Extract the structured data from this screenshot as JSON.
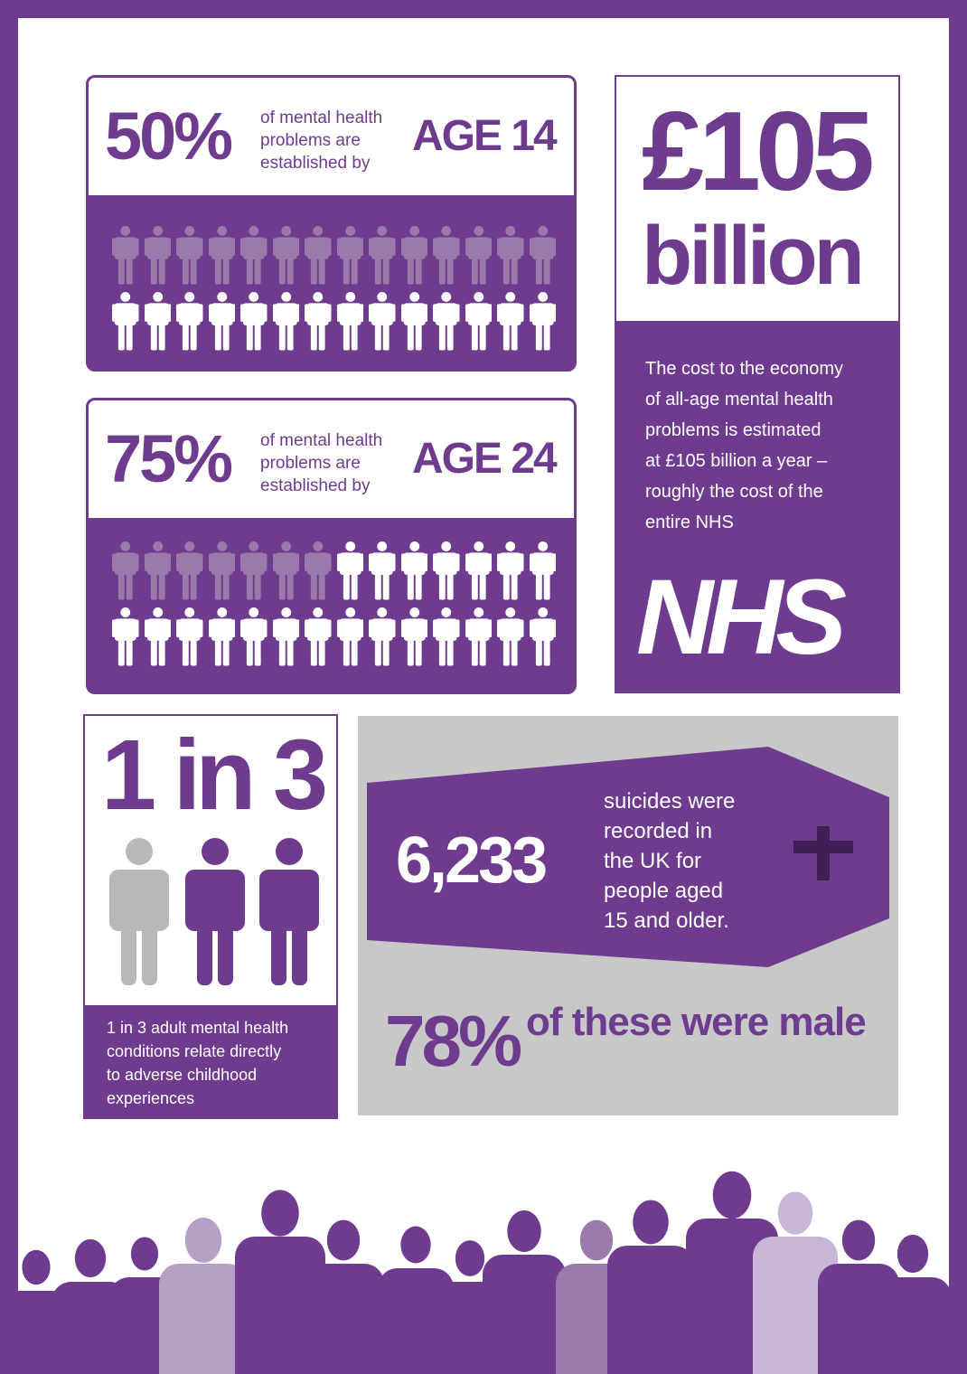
{
  "colors": {
    "purple": "#6e3b8e",
    "light_purple": "#9a7aab",
    "gray": "#c8c8c8",
    "white": "#ffffff"
  },
  "stat1": {
    "percent": "50%",
    "desc": [
      "of mental health",
      "problems are",
      "established by"
    ],
    "age": "AGE 14",
    "established_fraction": 0.5
  },
  "stat2": {
    "percent": "75%",
    "desc": [
      "of mental health",
      "problems are",
      "established by"
    ],
    "age": "AGE 24",
    "established_fraction": 0.75
  },
  "cost": {
    "amount": "£105",
    "unit": "billion",
    "text": [
      "The cost to the economy",
      "of all-age mental health",
      "problems is estimated",
      "at £105 billion a year –",
      "roughly the cost of the",
      "entire NHS"
    ],
    "logo": "NHS"
  },
  "ratio": {
    "headline": "1 in 3",
    "text": [
      "1 in 3 adult mental health",
      "conditions relate directly",
      "to adverse childhood",
      "experiences"
    ]
  },
  "suicide": {
    "count": "6,233",
    "text": [
      "suicides were",
      "recorded in",
      "the UK for",
      "people aged",
      "15 and older."
    ],
    "male_percent": "78%",
    "male_text": "of these were male",
    "icon": "cross-icon"
  }
}
